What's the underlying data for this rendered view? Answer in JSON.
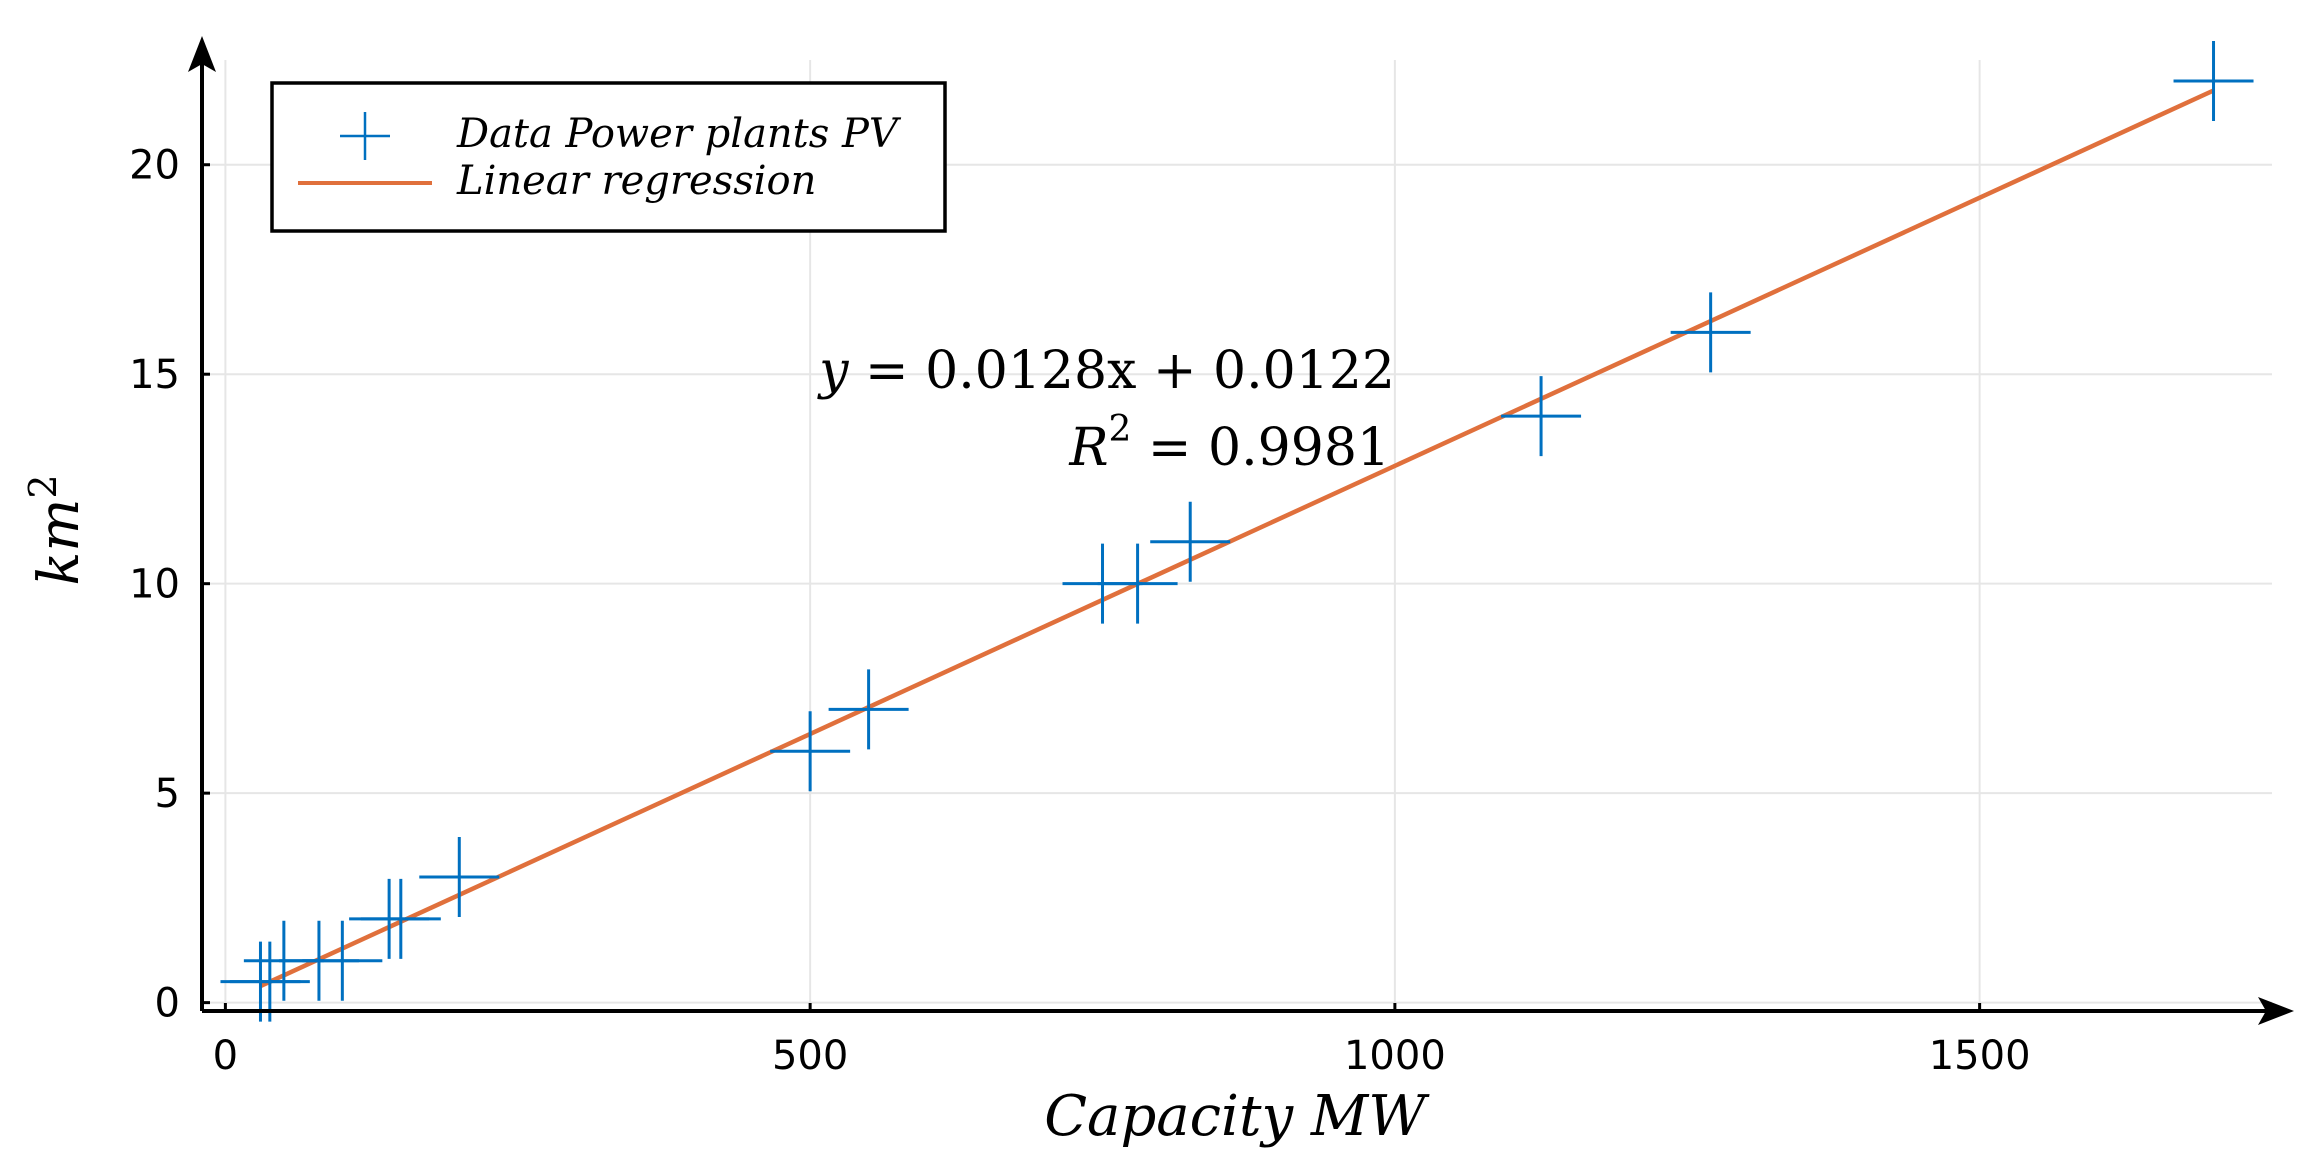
{
  "chart_data": {
    "type": "scatter",
    "title": "",
    "xlabel": "Capacity MW",
    "ylabel_base": "km",
    "ylabel_exp": "2",
    "xlim": [
      -20,
      1750
    ],
    "ylim": [
      -0.2,
      22.5
    ],
    "x_ticks": [
      0,
      500,
      1000,
      1500
    ],
    "x_tick_labels": [
      "0",
      "500",
      "1000",
      "1500"
    ],
    "y_ticks": [
      0,
      5,
      10,
      15,
      20
    ],
    "y_tick_labels": [
      "0",
      "5",
      "10",
      "15",
      "20"
    ],
    "grid": true,
    "legend_position": "top-left",
    "series": [
      {
        "name": "Data Power plants PV",
        "kind": "scatter",
        "marker": "plus",
        "color": "#0070c0",
        "x": [
          30,
          38,
          50,
          80,
          100,
          140,
          150,
          200,
          500,
          550,
          750,
          780,
          825,
          1125,
          1270,
          1700
        ],
        "y": [
          0.5,
          0.5,
          1,
          1,
          1,
          2,
          2,
          3,
          6,
          7,
          10,
          10,
          11,
          14,
          16,
          22
        ]
      },
      {
        "name": "Linear regression",
        "kind": "line",
        "color": "#e0703c",
        "slope": 0.0128,
        "intercept": 0.0122,
        "x_range": [
          30,
          1700
        ]
      }
    ],
    "annotation": {
      "equation_lhs": "y",
      "equation_rhs": "0.0128x + 0.0122",
      "r2_base": "R",
      "r2_exp": "2",
      "r2_rhs": "0.9981"
    }
  }
}
